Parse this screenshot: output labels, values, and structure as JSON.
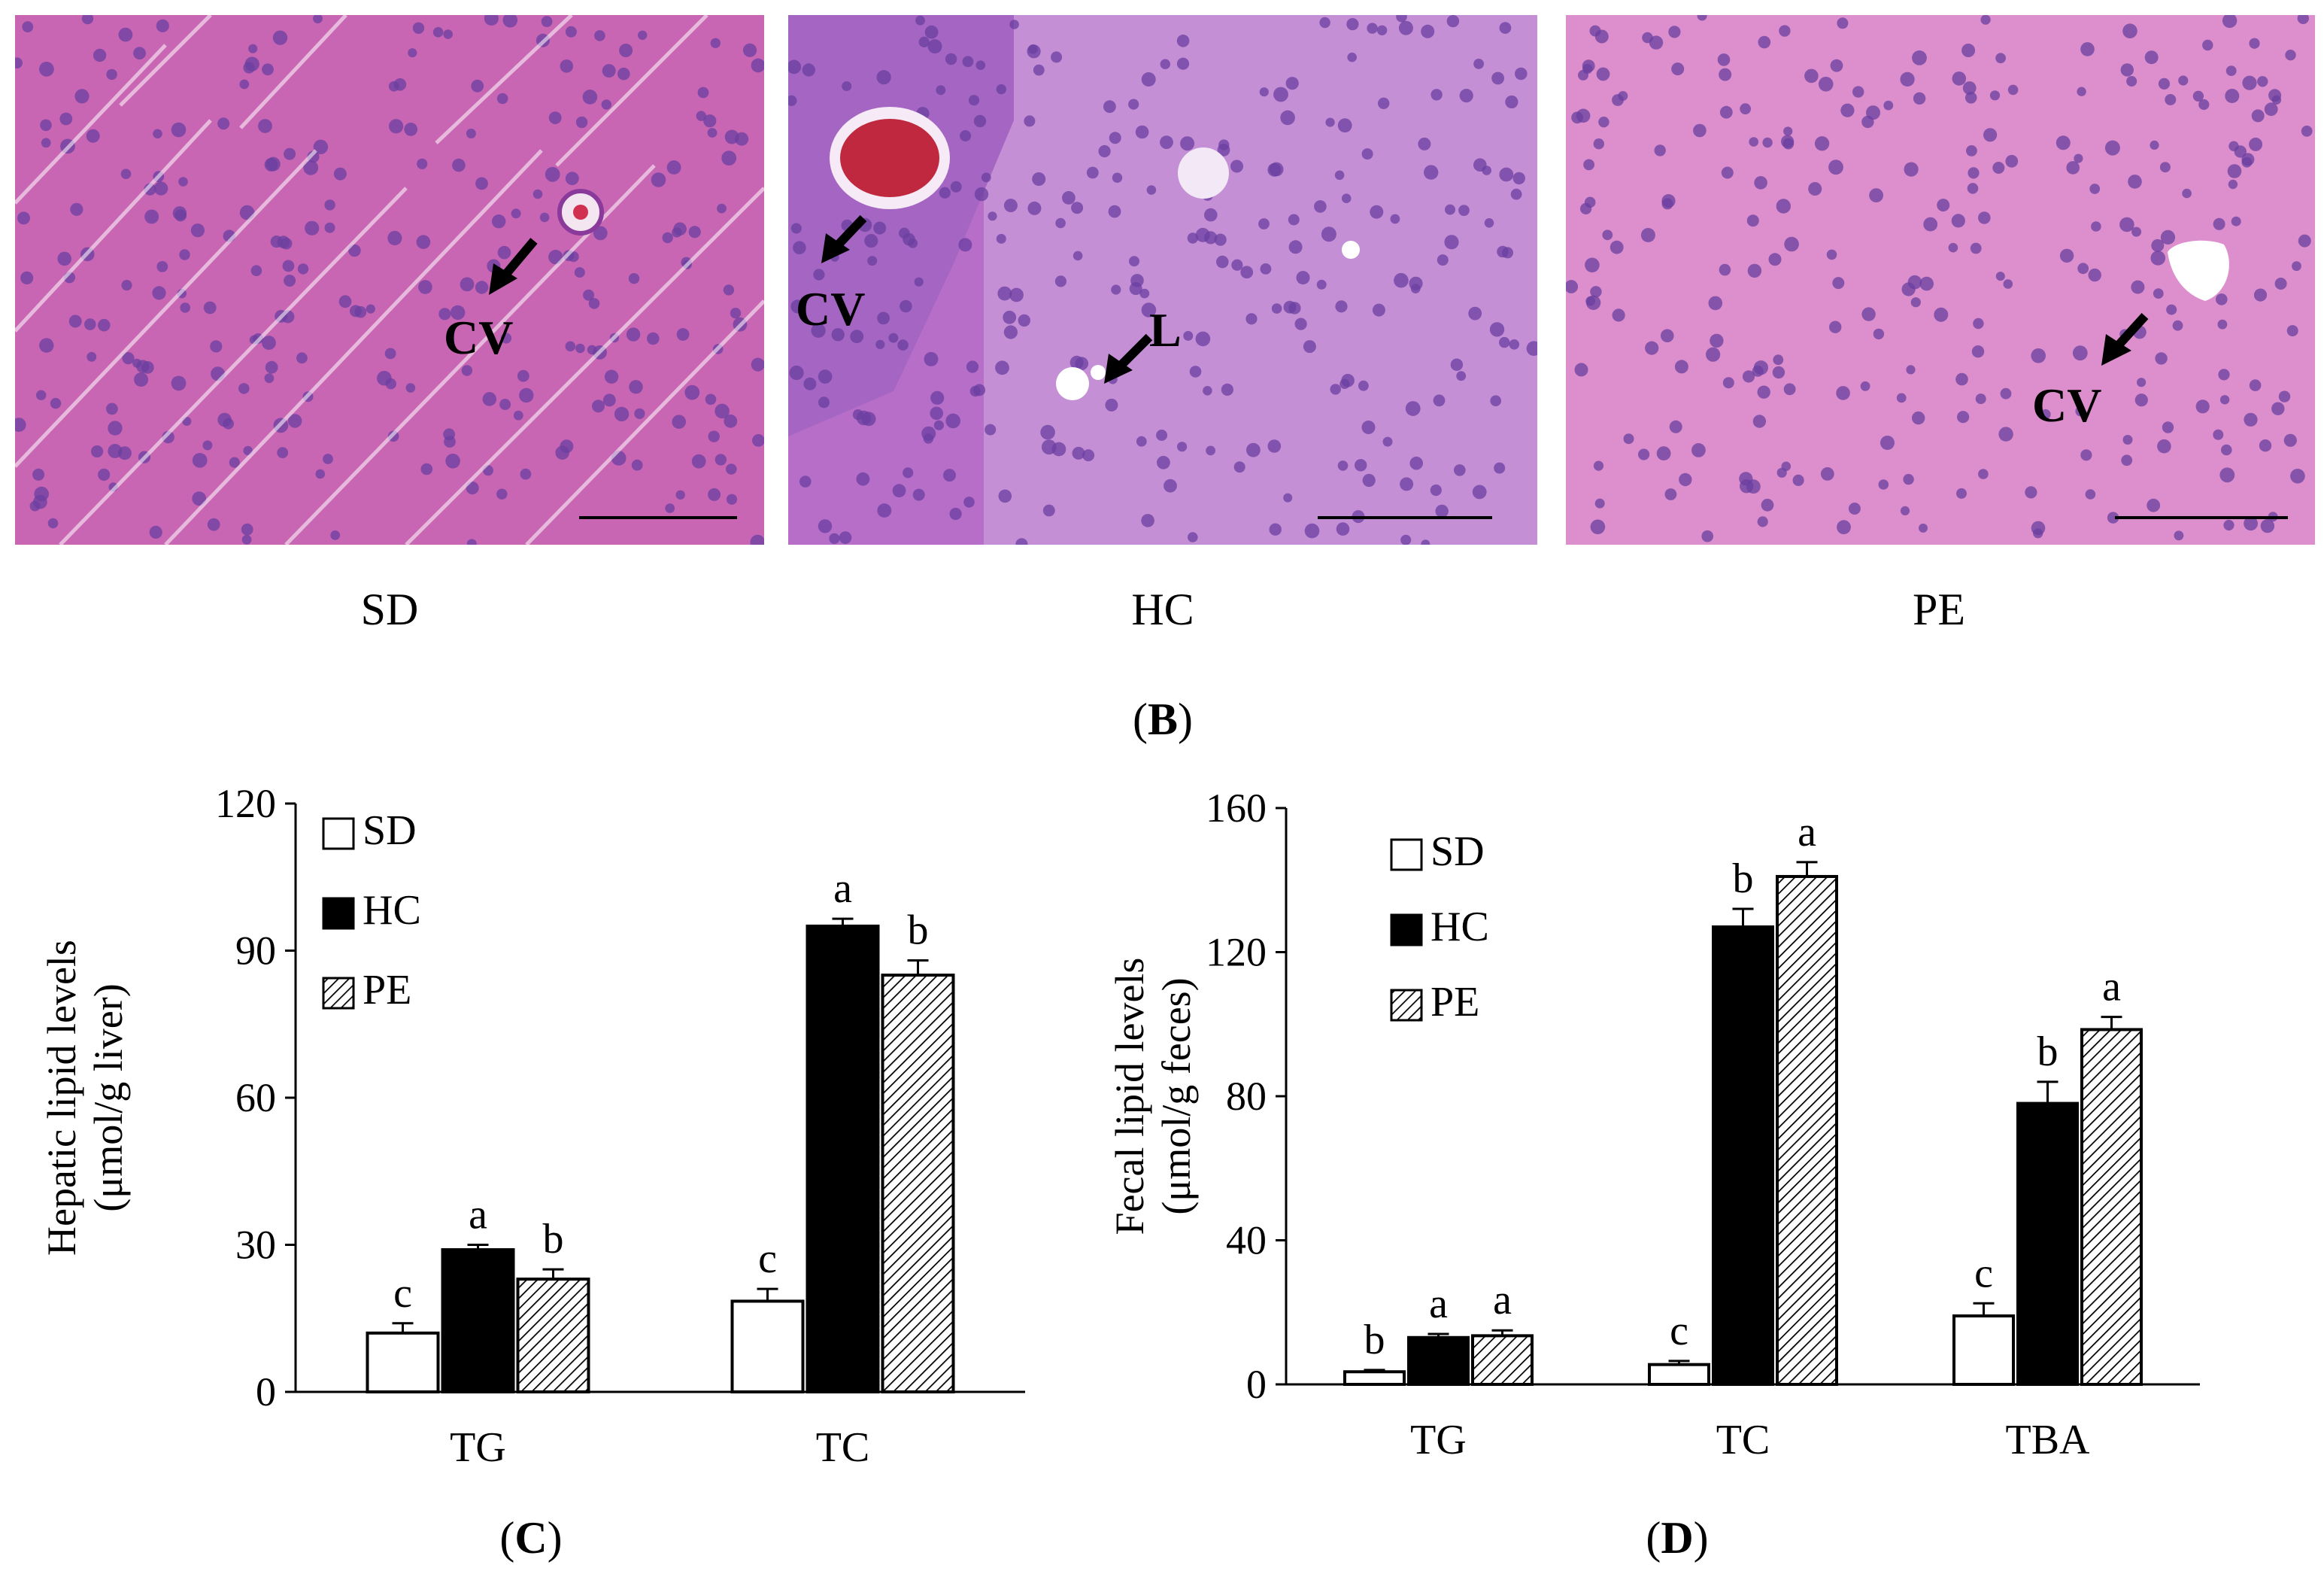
{
  "panels": [
    {
      "label": "SD",
      "annotations": [
        {
          "text": "CV"
        }
      ]
    },
    {
      "label": "HC",
      "annotations": [
        {
          "text": "CV"
        },
        {
          "text": "L"
        }
      ]
    },
    {
      "label": "PE",
      "annotations": [
        {
          "text": "CV"
        }
      ]
    }
  ],
  "caption_B": "B",
  "caption_C": "C",
  "caption_D": "D",
  "colors": {
    "tissue": "#cc6fb8",
    "nucleus": "#6a3fa0",
    "bar_black": "#000000",
    "bar_white": "#ffffff"
  },
  "chart_data": [
    {
      "id": "C",
      "type": "bar",
      "categories": [
        "TG",
        "TC"
      ],
      "ylabel_line1": "Hepatic lipid levels",
      "ylabel_line2": "(μmol/g liver)",
      "ylim": [
        0,
        120
      ],
      "yticks": [
        0,
        30,
        60,
        90,
        120
      ],
      "legend_position": "top-left",
      "series": [
        {
          "name": "SD",
          "fill": "white",
          "values": [
            12,
            18.5
          ],
          "errors": [
            2,
            2.5
          ],
          "letters": [
            "c",
            "c"
          ]
        },
        {
          "name": "HC",
          "fill": "black",
          "values": [
            29,
            95
          ],
          "errors": [
            1,
            1.5
          ],
          "letters": [
            "a",
            "a"
          ]
        },
        {
          "name": "PE",
          "fill": "hatch",
          "values": [
            23,
            85
          ],
          "errors": [
            2,
            3
          ],
          "letters": [
            "b",
            "b"
          ]
        }
      ]
    },
    {
      "id": "D",
      "type": "bar",
      "categories": [
        "TG",
        "TC",
        "TBA"
      ],
      "ylabel_line1": "Fecal lipid levels",
      "ylabel_line2": "(μmol/g feces)",
      "ylim": [
        0,
        160
      ],
      "yticks": [
        0,
        40,
        80,
        120,
        160
      ],
      "legend_position": "top-left",
      "series": [
        {
          "name": "SD",
          "fill": "white",
          "values": [
            3.5,
            5.5,
            19
          ],
          "errors": [
            0.5,
            1,
            3.5
          ],
          "letters": [
            "b",
            "c",
            "c"
          ]
        },
        {
          "name": "HC",
          "fill": "black",
          "values": [
            13,
            127,
            78
          ],
          "errors": [
            1,
            5,
            6
          ],
          "letters": [
            "a",
            "b",
            "b"
          ]
        },
        {
          "name": "PE",
          "fill": "hatch",
          "values": [
            13.5,
            141,
            98.5
          ],
          "errors": [
            1.5,
            4,
            3.5
          ],
          "letters": [
            "a",
            "a",
            "a"
          ]
        }
      ]
    }
  ]
}
